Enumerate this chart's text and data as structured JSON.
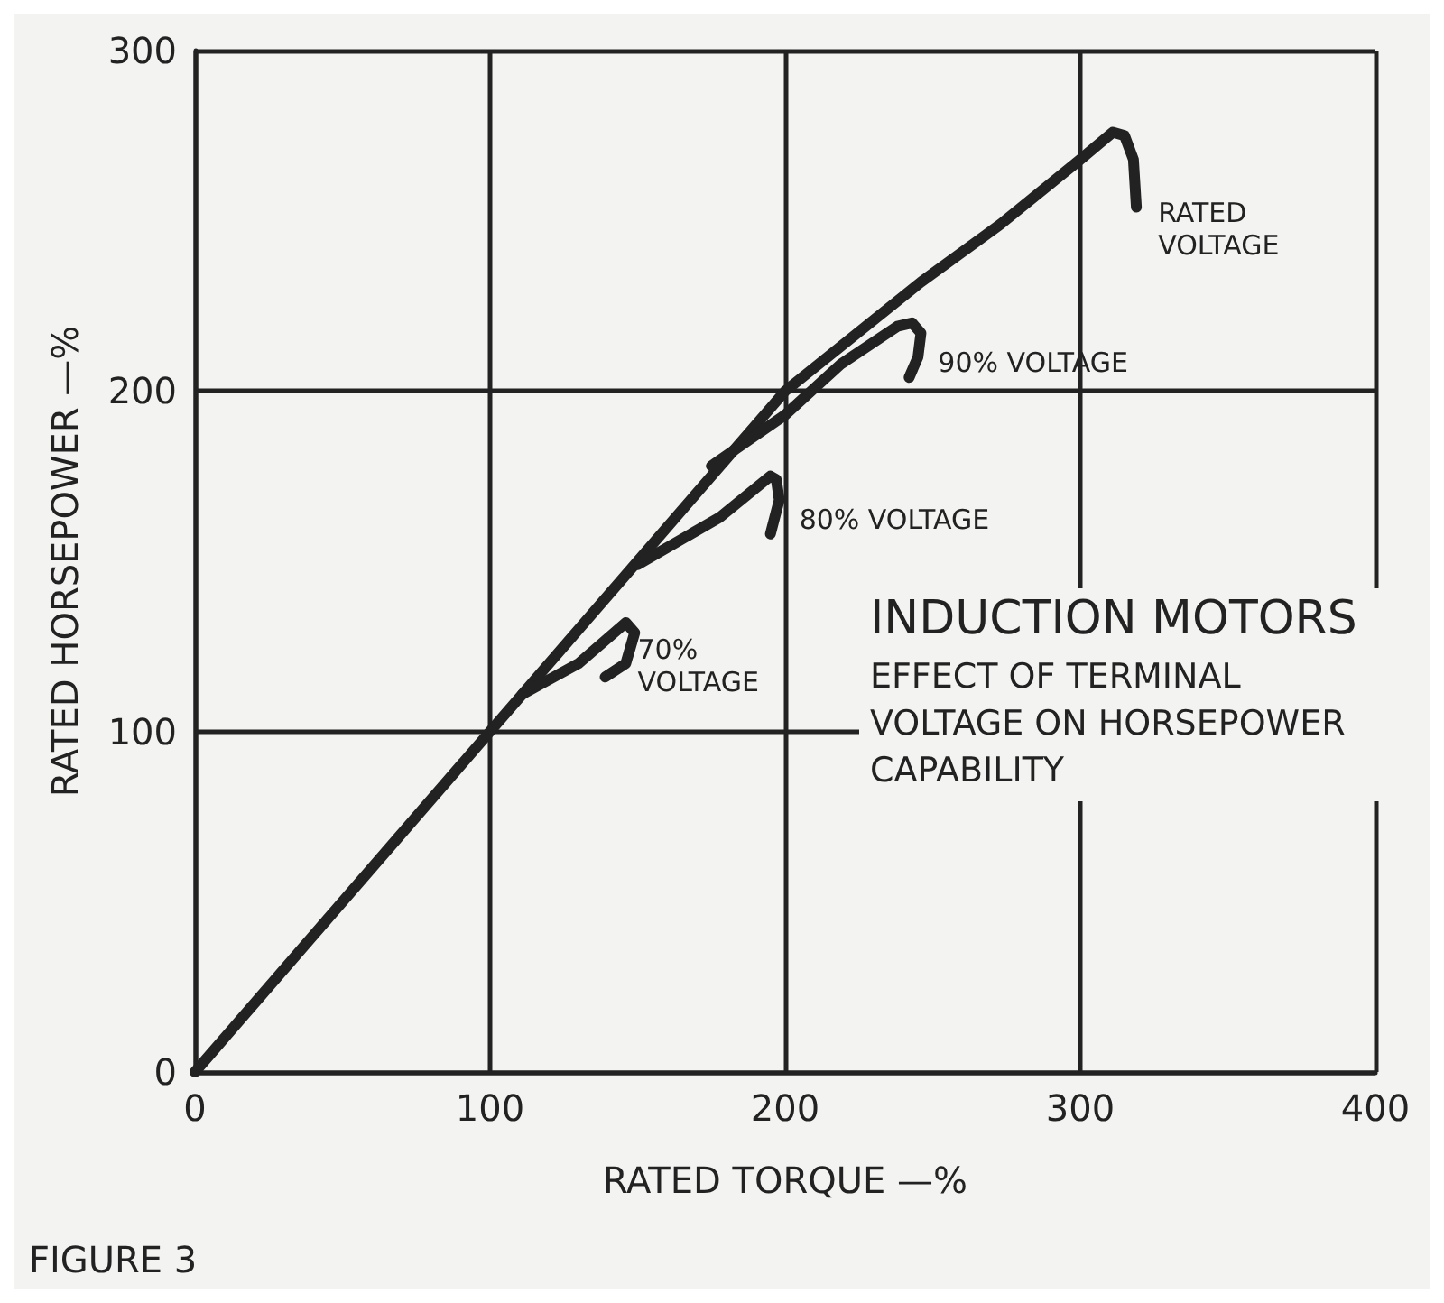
{
  "chart_data": {
    "type": "line",
    "title": "INDUCTION MOTORS",
    "subtitle": "EFFECT OF TERMINAL VOLTAGE ON HORSEPOWER CAPABILITY",
    "xlabel": "RATED TORQUE —%",
    "ylabel": "RATED HORSEPOWER —%",
    "annotations": [
      "FIGURE 3"
    ],
    "xlim": [
      0,
      400
    ],
    "xticks": [
      0,
      100,
      200,
      300,
      400
    ],
    "ylim": [
      0,
      300
    ],
    "yticks": [
      0,
      100,
      200,
      300
    ],
    "grid": true,
    "legend": false,
    "marker": "none",
    "line_style": "solid",
    "series": [
      {
        "name": "RATED VOLTAGE",
        "color": "#222222",
        "x": [
          0,
          100,
          151,
          200,
          246,
          273,
          300,
          311,
          315,
          318,
          319
        ],
        "values": [
          0,
          100,
          151,
          200,
          232,
          249,
          268,
          276,
          275,
          268,
          254
        ]
      },
      {
        "name": "90% VOLTAGE",
        "color": "#222222",
        "x": [
          175,
          200,
          219,
          238,
          243,
          246,
          245,
          242
        ],
        "values": [
          178,
          193,
          208,
          219,
          220,
          217,
          210,
          204
        ]
      },
      {
        "name": "80% VOLTAGE",
        "color": "#222222",
        "x": [
          150,
          178,
          195,
          197,
          198,
          195
        ],
        "values": [
          149,
          163,
          175,
          174,
          168,
          158
        ]
      },
      {
        "name": "70% VOLTAGE",
        "color": "#222222",
        "x": [
          111,
          130,
          146,
          149,
          146,
          139
        ],
        "values": [
          111,
          120,
          132,
          129,
          120,
          116
        ]
      }
    ]
  }
}
